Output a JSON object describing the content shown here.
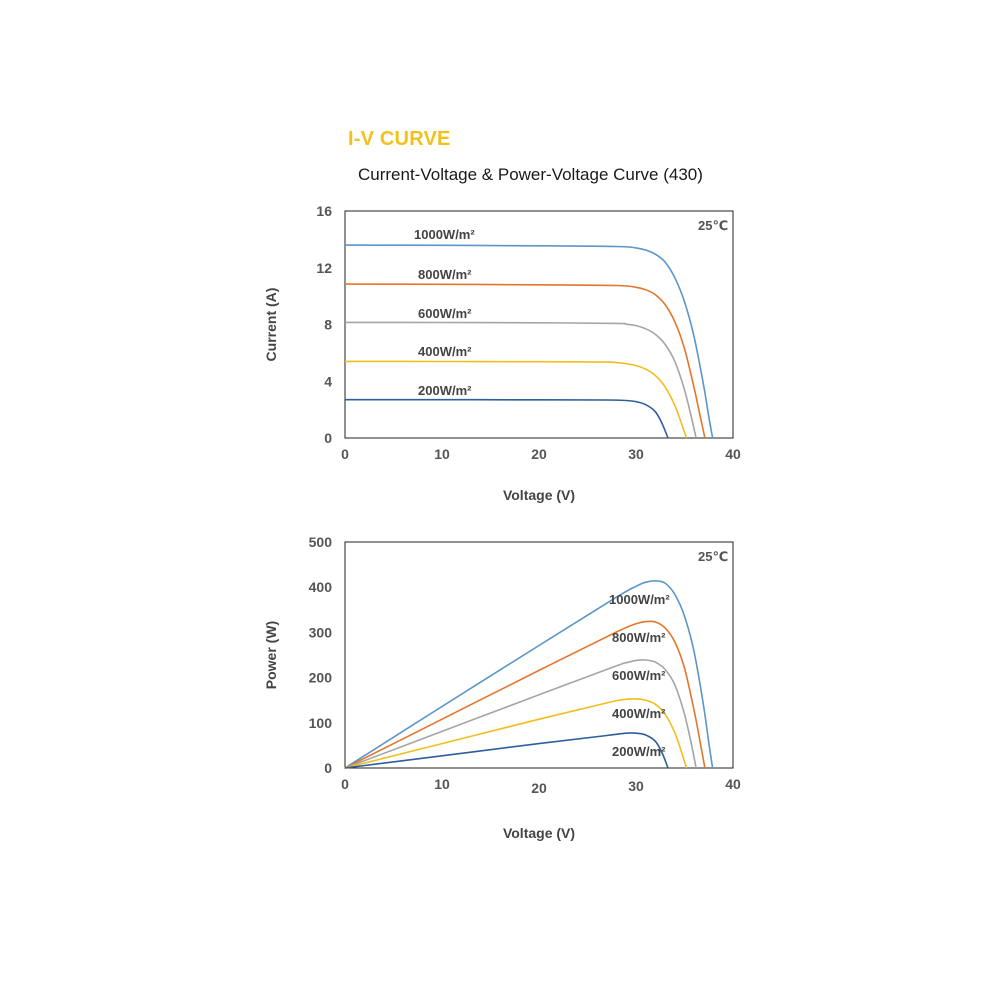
{
  "header": {
    "section_title": "I-V CURVE",
    "subtitle": "Current-Voltage & Power-Voltage Curve (430)"
  },
  "colors": {
    "1000W/m²": "#5b95c9",
    "800W/m²": "#e4762c",
    "600W/m²": "#a5a5a5",
    "400W/m²": "#f2bd1e",
    "200W/m²": "#2f5e9c"
  },
  "chart_data": [
    {
      "type": "line",
      "xlabel": "Voltage (V)",
      "ylabel": "Current (A)",
      "xlim": [
        0,
        40
      ],
      "ylim": [
        0,
        16
      ],
      "xticks": [
        "0",
        "10",
        "20",
        "30",
        "40"
      ],
      "yticks": [
        "0",
        "4",
        "8",
        "12",
        "16"
      ],
      "annotation": "25℃",
      "grid": false,
      "series": [
        {
          "name": "1000W/m²",
          "x": [
            0,
            10,
            20,
            28,
            30,
            31,
            32,
            33,
            34,
            35,
            36,
            37,
            37.5,
            37.9
          ],
          "y": [
            13.6,
            13.58,
            13.55,
            13.5,
            13.4,
            13.25,
            12.95,
            12.4,
            11.3,
            9.6,
            7.1,
            3.6,
            1.5,
            0
          ]
        },
        {
          "name": "800W/m²",
          "x": [
            0,
            10,
            20,
            28,
            30,
            31,
            32,
            33,
            34,
            35,
            36,
            36.6,
            37.1
          ],
          "y": [
            10.85,
            10.83,
            10.8,
            10.75,
            10.62,
            10.45,
            10.1,
            9.4,
            8.2,
            6.3,
            3.5,
            1.6,
            0
          ]
        },
        {
          "name": "600W/m²",
          "x": [
            0,
            10,
            20,
            28,
            29,
            30,
            31,
            32,
            33,
            34,
            35,
            35.7,
            36.2
          ],
          "y": [
            8.15,
            8.14,
            8.12,
            8.08,
            8.02,
            7.92,
            7.7,
            7.3,
            6.6,
            5.4,
            3.4,
            1.5,
            0
          ]
        },
        {
          "name": "400W/m²",
          "x": [
            0,
            10,
            20,
            27,
            28,
            29,
            30,
            31,
            32,
            33,
            34,
            34.7,
            35.2
          ],
          "y": [
            5.4,
            5.39,
            5.38,
            5.35,
            5.31,
            5.24,
            5.1,
            4.85,
            4.4,
            3.6,
            2.3,
            1.0,
            0
          ]
        },
        {
          "name": "200W/m²",
          "x": [
            0,
            10,
            20,
            27,
            29,
            30,
            31,
            32,
            32.7,
            33.3
          ],
          "y": [
            2.7,
            2.7,
            2.69,
            2.68,
            2.64,
            2.56,
            2.35,
            1.85,
            1.0,
            0
          ]
        }
      ]
    },
    {
      "type": "line",
      "xlabel": "Voltage (V)",
      "ylabel": "Power (W)",
      "xlim": [
        0,
        40
      ],
      "ylim": [
        0,
        500
      ],
      "xticks": [
        "0",
        "10",
        "20",
        "30",
        "40"
      ],
      "yticks": [
        "0",
        "100",
        "200",
        "300",
        "400",
        "500"
      ],
      "annotation": "25℃",
      "grid": false,
      "series": [
        {
          "name": "1000W/m²",
          "x": [
            0,
            10,
            20,
            28,
            30,
            31,
            32,
            33,
            34,
            35,
            36,
            37,
            37.5,
            37.9
          ],
          "y": [
            0,
            136,
            271,
            378,
            402,
            411,
            414,
            409,
            384,
            336,
            256,
            133,
            56,
            0
          ]
        },
        {
          "name": "800W/m²",
          "x": [
            0,
            10,
            20,
            28,
            30,
            31,
            32,
            33,
            34,
            35,
            36,
            36.6,
            37.1
          ],
          "y": [
            0,
            108,
            216,
            301,
            319,
            324,
            323,
            310,
            279,
            221,
            126,
            59,
            0
          ]
        },
        {
          "name": "600W/m²",
          "x": [
            0,
            10,
            20,
            28,
            29,
            30,
            31,
            32,
            33,
            34,
            35,
            35.7,
            36.2
          ],
          "y": [
            0,
            81,
            162,
            226,
            233,
            238,
            239,
            234,
            218,
            184,
            119,
            54,
            0
          ]
        },
        {
          "name": "400W/m²",
          "x": [
            0,
            10,
            20,
            27,
            28,
            29,
            30,
            31,
            32,
            33,
            34,
            34.7,
            35.2
          ],
          "y": [
            0,
            54,
            108,
            144,
            149,
            152,
            153,
            150,
            141,
            119,
            78,
            35,
            0
          ]
        },
        {
          "name": "200W/m²",
          "x": [
            0,
            10,
            20,
            27,
            29,
            30,
            31,
            32,
            32.7,
            33.3
          ],
          "y": [
            0,
            27,
            54,
            72,
            77,
            77,
            73,
            59,
            33,
            0
          ]
        }
      ]
    }
  ]
}
